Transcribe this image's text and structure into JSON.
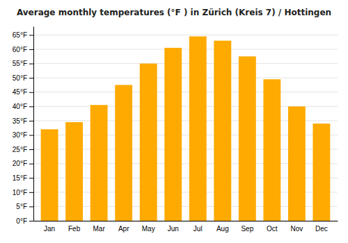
{
  "chart_data": {
    "type": "bar",
    "title": "Average monthly temperatures (°F ) in Zürich (Kreis 7) / Hottingen",
    "categories": [
      "Jan",
      "Feb",
      "Mar",
      "Apr",
      "May",
      "Jun",
      "Jul",
      "Aug",
      "Sep",
      "Oct",
      "Nov",
      "Dec"
    ],
    "values": [
      32,
      34.5,
      40.5,
      47.5,
      55,
      60.5,
      64.5,
      63,
      57.5,
      49.5,
      40,
      34
    ],
    "color": "#FFAA00",
    "ylim": [
      0,
      68
    ],
    "yticks": [
      {
        "value": 0,
        "label": "0°F"
      },
      {
        "value": 5,
        "label": "5°F"
      },
      {
        "value": 10,
        "label": "10°F"
      },
      {
        "value": 15,
        "label": "15°F"
      },
      {
        "value": 20,
        "label": "20°F"
      },
      {
        "value": 25,
        "label": "25°F"
      },
      {
        "value": 30,
        "label": "30°F"
      },
      {
        "value": 35,
        "label": "35°F"
      },
      {
        "value": 40,
        "label": "40°F"
      },
      {
        "value": 45,
        "label": "45°F"
      },
      {
        "value": 50,
        "label": "50°F"
      },
      {
        "value": 55,
        "label": "55°F"
      },
      {
        "value": 60,
        "label": "60°F"
      },
      {
        "value": 65,
        "label": "65°F"
      }
    ],
    "grid": true
  }
}
